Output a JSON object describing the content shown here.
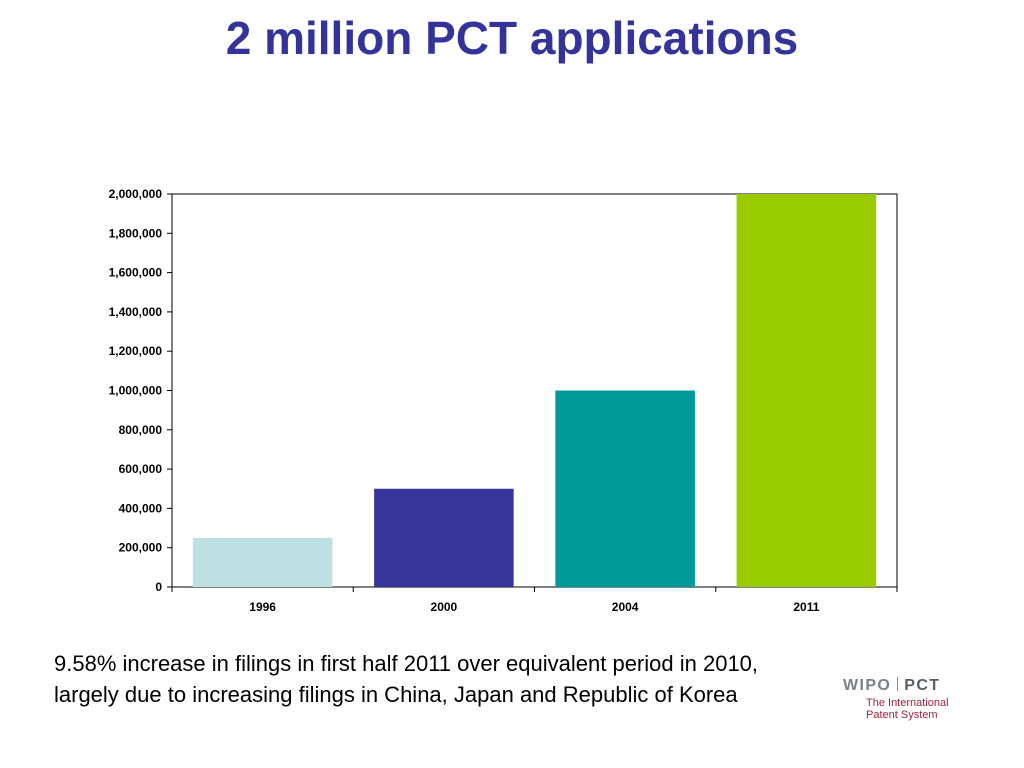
{
  "slide": {
    "title": "2 million PCT applications",
    "note": "9.58% increase in filings in first half 2011 over equivalent period in 2010, largely due to increasing filings in China, Japan and Republic of Korea"
  },
  "logo": {
    "wipo": "WIPO",
    "pct": "PCT",
    "line1": "The International",
    "line2": "Patent System"
  },
  "colors": {
    "title": "#33339a",
    "logo_wipo": "#7a8088",
    "logo_pct": "#5a5f66",
    "logo_sub": "#a0243c"
  },
  "chart_data": {
    "type": "bar",
    "categories": [
      "1996",
      "2000",
      "2004",
      "2011"
    ],
    "values": [
      250000,
      500000,
      1000000,
      2000000
    ],
    "colors": [
      "#bde0e3",
      "#37369a",
      "#009a9a",
      "#99cc00"
    ],
    "title": "",
    "xlabel": "",
    "ylabel": "",
    "ylim": [
      0,
      2000000
    ],
    "yticks": [
      0,
      200000,
      400000,
      600000,
      800000,
      1000000,
      1200000,
      1400000,
      1600000,
      1800000,
      2000000
    ],
    "ytick_labels": [
      "0",
      "200,000",
      "400,000",
      "600,000",
      "800,000",
      "1,000,000",
      "1,200,000",
      "1,400,000",
      "1,600,000",
      "1,800,000",
      "2,000,000"
    ],
    "grid": false,
    "legend": "none"
  }
}
